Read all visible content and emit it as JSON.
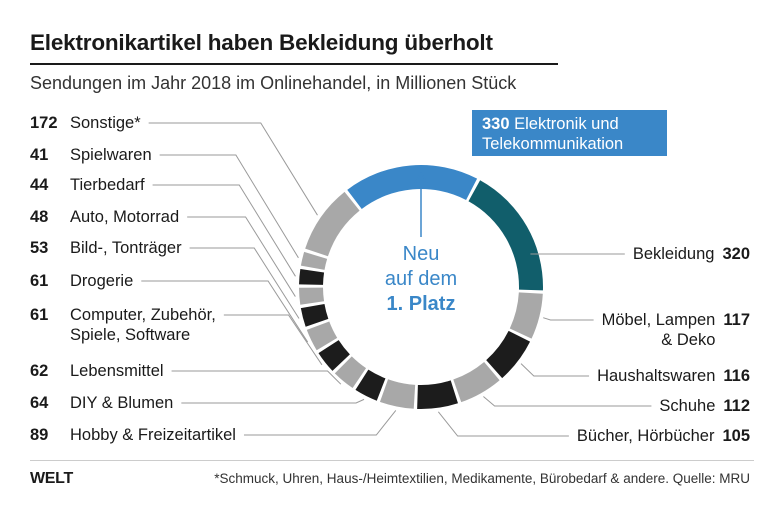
{
  "header": {
    "title": "Elektronikartikel haben Bekleidung überholt",
    "subtitle": "Sendungen im Jahr 2018 im Onlinehandel, in Millionen Stück"
  },
  "footer": {
    "logo": "WELT",
    "footnote": "*Schmuck, Uhren, Haus-/Heimtextilien, Medikamente, Bürobedarf & andere. Quelle: MRU"
  },
  "chart_data": {
    "type": "pie",
    "variant": "donut",
    "title": "Elektronikartikel haben Bekleidung überholt",
    "subtitle": "Sendungen im Jahr 2018 im Onlinehandel, in Millionen Stück",
    "unit": "Millionen Stück",
    "center_text": [
      "Neu",
      "auf dem",
      "1. Platz"
    ],
    "highlight_color": "#3a87c8",
    "second_color": "#115e6b",
    "series": [
      {
        "label": "Elektronik und Telekommunikation",
        "label_lines": [
          "Elektronik und",
          "Telekommunikation"
        ],
        "value": 330,
        "color": "#3a87c8"
      },
      {
        "label": "Bekleidung",
        "label_lines": [
          "Bekleidung"
        ],
        "value": 320,
        "color": "#115e6b"
      },
      {
        "label": "Möbel, Lampen & Deko",
        "label_lines": [
          "Möbel, Lampen",
          "& Deko"
        ],
        "value": 117,
        "color": "#a8a8a8"
      },
      {
        "label": "Haushaltswaren",
        "label_lines": [
          "Haushaltswaren"
        ],
        "value": 116,
        "color": "#1c1c1c"
      },
      {
        "label": "Schuhe",
        "label_lines": [
          "Schuhe"
        ],
        "value": 112,
        "color": "#a8a8a8"
      },
      {
        "label": "Bücher, Hörbücher",
        "label_lines": [
          "Bücher, Hörbücher"
        ],
        "value": 105,
        "color": "#1c1c1c"
      },
      {
        "label": "Hobby & Freizeitartikel",
        "label_lines": [
          "Hobby & Freizeitartikel"
        ],
        "value": 89,
        "color": "#a8a8a8"
      },
      {
        "label": "DIY & Blumen",
        "label_lines": [
          "DIY & Blumen"
        ],
        "value": 64,
        "color": "#1c1c1c"
      },
      {
        "label": "Lebensmittel",
        "label_lines": [
          "Lebensmittel"
        ],
        "value": 62,
        "color": "#a8a8a8"
      },
      {
        "label": "Computer, Zubehör, Spiele, Software",
        "label_lines": [
          "Computer, Zubehör,",
          "Spiele, Software"
        ],
        "value": 61,
        "color": "#1c1c1c"
      },
      {
        "label": "Drogerie",
        "label_lines": [
          "Drogerie"
        ],
        "value": 61,
        "color": "#a8a8a8"
      },
      {
        "label": "Bild-, Tonträger",
        "label_lines": [
          "Bild-, Tonträger"
        ],
        "value": 53,
        "color": "#1c1c1c"
      },
      {
        "label": "Auto, Motorrad",
        "label_lines": [
          "Auto, Motorrad"
        ],
        "value": 48,
        "color": "#a8a8a8"
      },
      {
        "label": "Tierbedarf",
        "label_lines": [
          "Tierbedarf"
        ],
        "value": 44,
        "color": "#1c1c1c"
      },
      {
        "label": "Spielwaren",
        "label_lines": [
          "Spielwaren"
        ],
        "value": 41,
        "color": "#a8a8a8"
      },
      {
        "label": "Sonstige*",
        "label_lines": [
          "Sonstige*"
        ],
        "value": 172,
        "color": "#a8a8a8"
      }
    ]
  }
}
